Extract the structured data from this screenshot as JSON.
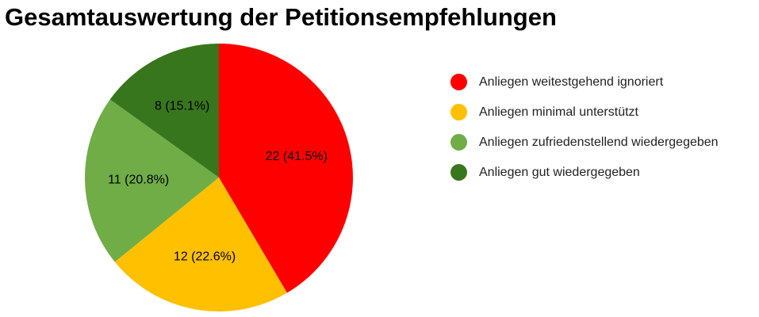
{
  "chart_data": {
    "type": "pie",
    "title": "Gesamtauswertung der Petitionsempfehlungen",
    "categories": [
      "Anliegen weitestgehend ignoriert",
      "Anliegen minimal unterstützt",
      "Anliegen zufriedenstellend wiedergegeben",
      "Anliegen gut wiedergegeben"
    ],
    "values": [
      22,
      12,
      11,
      8
    ],
    "slice_labels": [
      "22 (41.5%)",
      "12 (22.6%)",
      "11 (20.8%)",
      "8 (15.1%)"
    ],
    "colors": [
      "#ff0000",
      "#ffc000",
      "#70ad47",
      "#38761d"
    ],
    "legend_position": "right",
    "start_angle_deg": 0,
    "direction": "clockwise"
  }
}
